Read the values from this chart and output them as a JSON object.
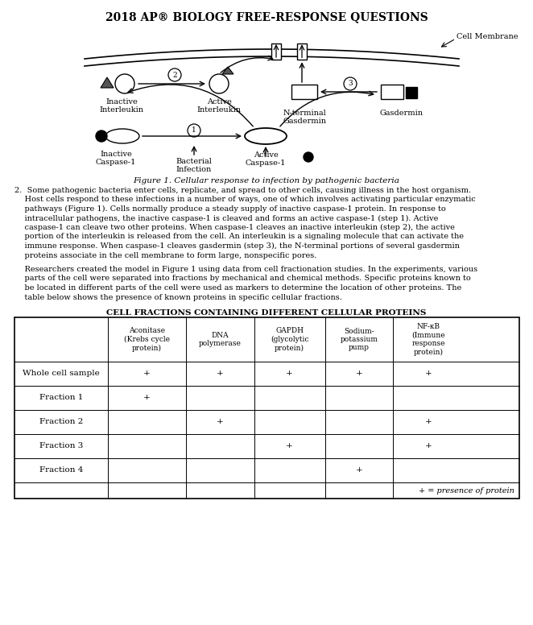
{
  "title": "2018 AP® BIOLOGY FREE-RESPONSE QUESTIONS",
  "fig_caption": "Figure 1. Cellular response to infection by pathogenic bacteria",
  "table_title": "CELL FRACTIONS CONTAINING DIFFERENT CELLULAR PROTEINS",
  "col_headers": [
    "",
    "Aconitase\n(Krebs cycle\nprotein)",
    "DNA\npolymerase",
    "GAPDH\n(glycolytic\nprotein)",
    "Sodium-\npotassium\npump",
    "NF-κB\n(Immune\nresponse\nprotein)"
  ],
  "rows": [
    [
      "Whole cell sample",
      "+",
      "+",
      "+",
      "+",
      "+"
    ],
    [
      "Fraction 1",
      "+",
      "",
      "",
      "",
      ""
    ],
    [
      "Fraction 2",
      "",
      "+",
      "",
      "",
      "+"
    ],
    [
      "Fraction 3",
      "",
      "",
      "+",
      "",
      "+"
    ],
    [
      "Fraction 4",
      "",
      "",
      "",
      "+",
      ""
    ]
  ],
  "table_footnote": "+ = presence of protein",
  "para1_lines": [
    "2.  Some pathogenic bacteria enter cells, replicate, and spread to other cells, causing illness in the host organism.",
    "    Host cells respond to these infections in a number of ways, one of which involves activating particular enzymatic",
    "    pathways (Figure 1). Cells normally produce a steady supply of inactive caspase-1 protein. In response to",
    "    intracellular pathogens, the inactive caspase-1 is cleaved and forms an active caspase-1 (step 1). Active",
    "    caspase-1 can cleave two other proteins. When caspase-1 cleaves an inactive interleukin (step 2), the active",
    "    portion of the interleukin is released from the cell. An interleukin is a signaling molecule that can activate the",
    "    immune response. When caspase-1 cleaves gasdermin (step 3), the N-terminal portions of several gasdermin",
    "    proteins associate in the cell membrane to form large, nonspecific pores."
  ],
  "para2_lines": [
    "    Researchers created the model in Figure 1 using data from cell fractionation studies. In the experiments, various",
    "    parts of the cell were separated into fractions by mechanical and chemical methods. Specific proteins known to",
    "    be located in different parts of the cell were used as markers to determine the location of other proteins. The",
    "    table below shows the presence of known proteins in specific cellular fractions."
  ],
  "bg_color": "#ffffff",
  "text_color": "#000000"
}
